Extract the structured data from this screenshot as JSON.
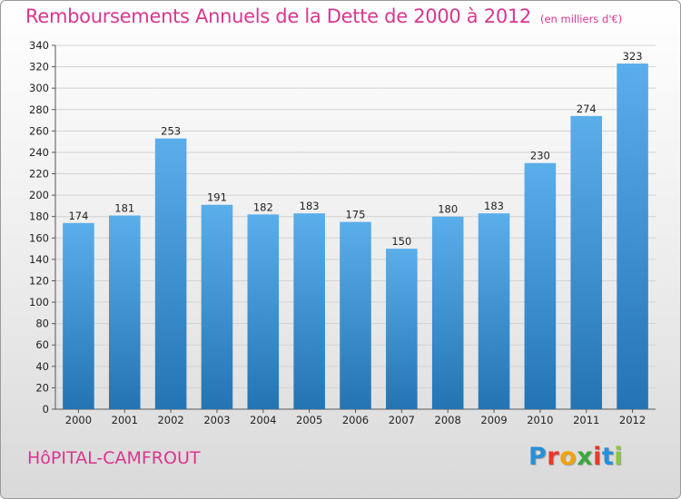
{
  "header": {
    "title": "Remboursements Annuels de la Dette de 2000 à 2012",
    "subtitle": "(en milliers d'€)"
  },
  "footer": {
    "place": "HôPITAL-CAMFROUT",
    "logo_letters": [
      "P",
      "r",
      "o",
      "x",
      "i",
      "t",
      "i"
    ],
    "logo_colors": [
      "#2a8fd6",
      "#e8392a",
      "#f0a20b",
      "#3aa83a",
      "#e8392a",
      "#2a8fd6",
      "#8cc63f"
    ]
  },
  "colors": {
    "bar_top": "#5aaeea",
    "bar_bottom": "#2474b4",
    "grid": "#d2d2d2",
    "accent": "#d9368f"
  },
  "chart_data": {
    "type": "bar",
    "categories": [
      "2000",
      "2001",
      "2002",
      "2003",
      "2004",
      "2005",
      "2006",
      "2007",
      "2008",
      "2009",
      "2010",
      "2011",
      "2012"
    ],
    "values": [
      174,
      181,
      253,
      191,
      182,
      183,
      175,
      150,
      180,
      183,
      230,
      274,
      323
    ],
    "ylim": [
      0,
      340
    ],
    "yticks": [
      0,
      20,
      40,
      60,
      80,
      100,
      120,
      140,
      160,
      180,
      200,
      220,
      240,
      260,
      280,
      300,
      320,
      340
    ],
    "grid": true,
    "title": "Remboursements Annuels de la Dette de 2000 à 2012",
    "subtitle": "(en milliers d'€)",
    "xlabel": "",
    "ylabel": ""
  }
}
